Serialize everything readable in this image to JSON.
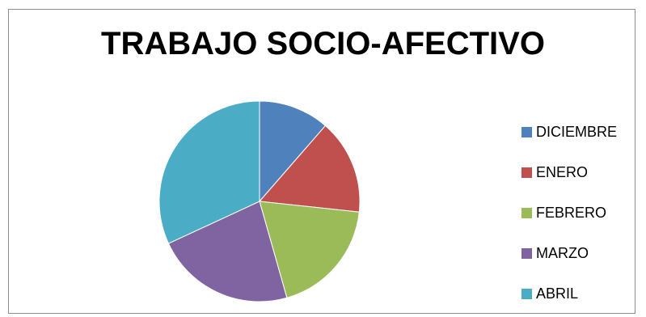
{
  "chart_data": {
    "type": "pie",
    "title": "TRABAJO SOCIO-AFECTIVO",
    "categories": [
      "DICIEMBRE",
      "ENERO",
      "FEBRERO",
      "MARZO",
      "ABRIL"
    ],
    "values": [
      11.4,
      15.3,
      18.9,
      22.5,
      31.9
    ],
    "colors": [
      "#4f81bd",
      "#c0504d",
      "#9bbb59",
      "#8064a2",
      "#4bacc6"
    ],
    "start_angle_deg": 0,
    "direction": "clockwise",
    "legend_position": "right"
  }
}
